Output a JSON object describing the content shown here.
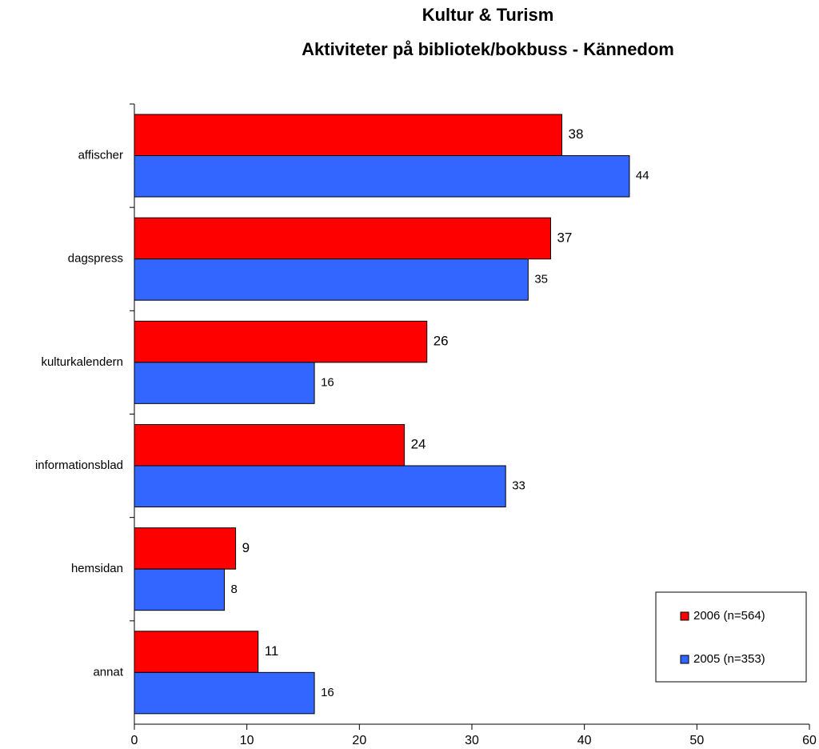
{
  "chart_data": {
    "type": "bar",
    "orientation": "horizontal",
    "title": [
      "Kultur & Turism",
      "Aktiviteter på bibliotek/bokbuss - Kännedom"
    ],
    "categories": [
      "affischer",
      "dagspress",
      "kulturkalendern",
      "informationsblad",
      "hemsidan",
      "annat"
    ],
    "series": [
      {
        "name": "2006 (n=564)",
        "color": "#ff0000",
        "values": [
          38,
          37,
          26,
          24,
          9,
          11
        ]
      },
      {
        "name": "2005 (n=353)",
        "color": "#3366ff",
        "values": [
          44,
          35,
          16,
          33,
          8,
          16
        ]
      }
    ],
    "xlim": [
      0,
      60
    ],
    "xticks": [
      0,
      10,
      20,
      30,
      40,
      50,
      60
    ],
    "legend": "lower right",
    "grid": false
  }
}
